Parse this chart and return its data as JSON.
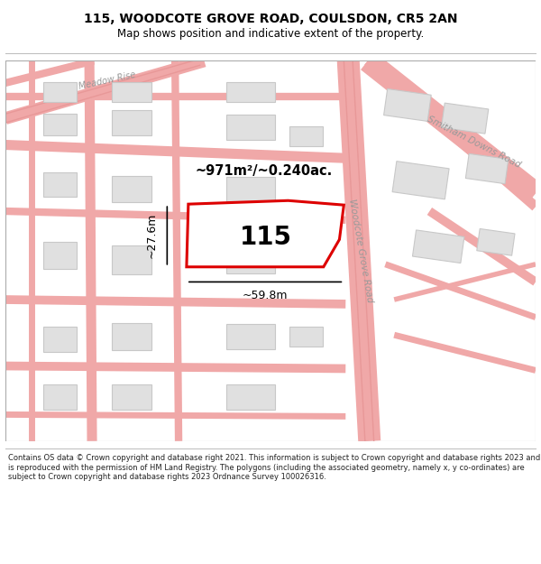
{
  "title_line1": "115, WOODCOTE GROVE ROAD, COULSDON, CR5 2AN",
  "title_line2": "Map shows position and indicative extent of the property.",
  "footer_text": "Contains OS data © Crown copyright and database right 2021. This information is subject to Crown copyright and database rights 2023 and is reproduced with the permission of HM Land Registry. The polygons (including the associated geometry, namely x, y co-ordinates) are subject to Crown copyright and database rights 2023 Ordnance Survey 100026316.",
  "area_label": "~971m²/~0.240ac.",
  "number_label": "115",
  "dim_width": "~59.8m",
  "dim_height": "~27.6m",
  "road_label": "Woodcote Grove Road",
  "road_label2": "Smitham Downs Road",
  "street_label": "Meadow Rise",
  "map_bg": "#f7f7f7",
  "road_color": "#f0a8a8",
  "building_color": "#e0e0e0",
  "building_edge": "#c8c8c8",
  "highlight_color": "#dd0000",
  "title_fontsize": 10,
  "subtitle_fontsize": 8.5,
  "footer_fontsize": 6.0
}
